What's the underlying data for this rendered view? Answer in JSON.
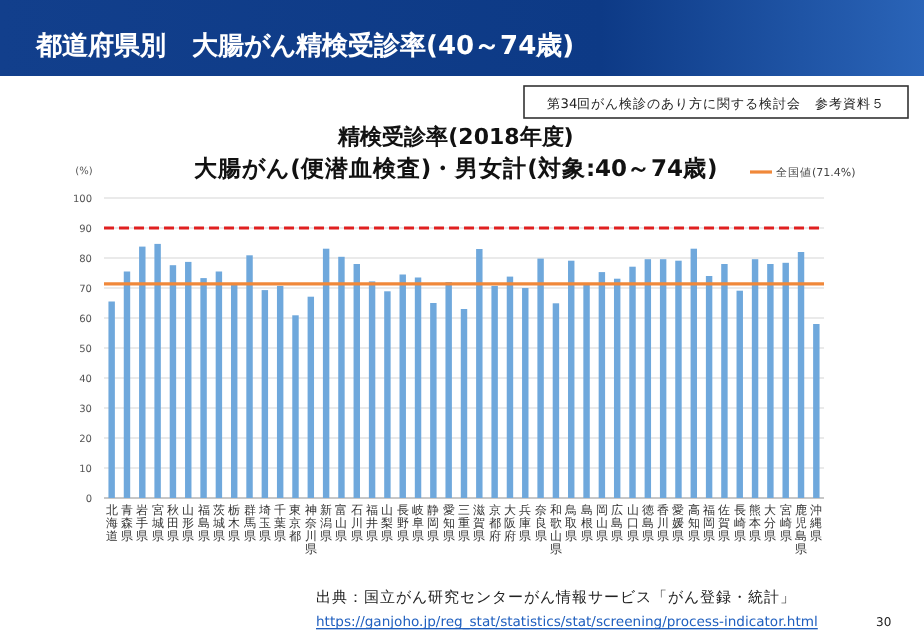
{
  "chart_data": {
    "type": "bar",
    "title": "都道府県別　大腸がん精検受診率(40～74歳)",
    "subtitle": "精検受診率(2018年度)\n大腸がん(便潜血検査)・男女計(対象:40～74歳)",
    "ylabel": "(%)",
    "categories": [
      "北海道",
      "青森県",
      "岩手県",
      "宮城県",
      "秋田県",
      "山形県",
      "福島県",
      "茨城県",
      "栃木県",
      "群馬県",
      "埼玉県",
      "千葉県",
      "東京都",
      "神奈川県",
      "新潟県",
      "富山県",
      "石川県",
      "福井県",
      "山梨県",
      "長野県",
      "岐阜県",
      "静岡県",
      "愛知県",
      "三重県",
      "滋賀県",
      "京都府",
      "大阪府",
      "兵庫県",
      "奈良県",
      "和歌山県",
      "鳥取県",
      "島根県",
      "岡山県",
      "広島県",
      "山口県",
      "徳島県",
      "香川県",
      "愛媛県",
      "高知県",
      "福岡県",
      "佐賀県",
      "長崎県",
      "熊本県",
      "大分県",
      "宮崎県",
      "鹿児島県",
      "沖縄県"
    ],
    "values": [
      65.5,
      75.5,
      83.8,
      84.7,
      77.6,
      78.7,
      73.3,
      75.5,
      71.1,
      80.9,
      69.3,
      70.7,
      60.9,
      67.1,
      83.1,
      80.4,
      78,
      72.2,
      68.9,
      74.5,
      73.5,
      65,
      72,
      63,
      83,
      70.7,
      73.8,
      70,
      79.8,
      64.9,
      79.1,
      71.3,
      75.3,
      73.1,
      77.1,
      79.6,
      79.6,
      79.1,
      83.1,
      74,
      78,
      69.1,
      79.6,
      78,
      78.4,
      82,
      58
    ],
    "color": "#6fa8dc",
    "ylim": [
      0,
      100
    ],
    "yticks": [
      0,
      10,
      20,
      30,
      40,
      50,
      60,
      70,
      80,
      90,
      100
    ],
    "grid": "y",
    "ref_lines": [
      {
        "axis": "y",
        "value": 90,
        "color": "#e02020",
        "line_style": "dashed"
      },
      {
        "axis": "y",
        "value": 71.4,
        "label": "全国値(71.4%)",
        "color": "#f0883a",
        "line_style": "solid"
      }
    ],
    "annotations": [
      "第34回がん検診のあり方に関する検討会　参考資料５",
      "出典：国立がん研究センターがん情報サービス「がん登録・統計」",
      "https://ganjoho.jp/reg_stat/statistics/stat/screening/process-indicator.html",
      "30"
    ]
  }
}
